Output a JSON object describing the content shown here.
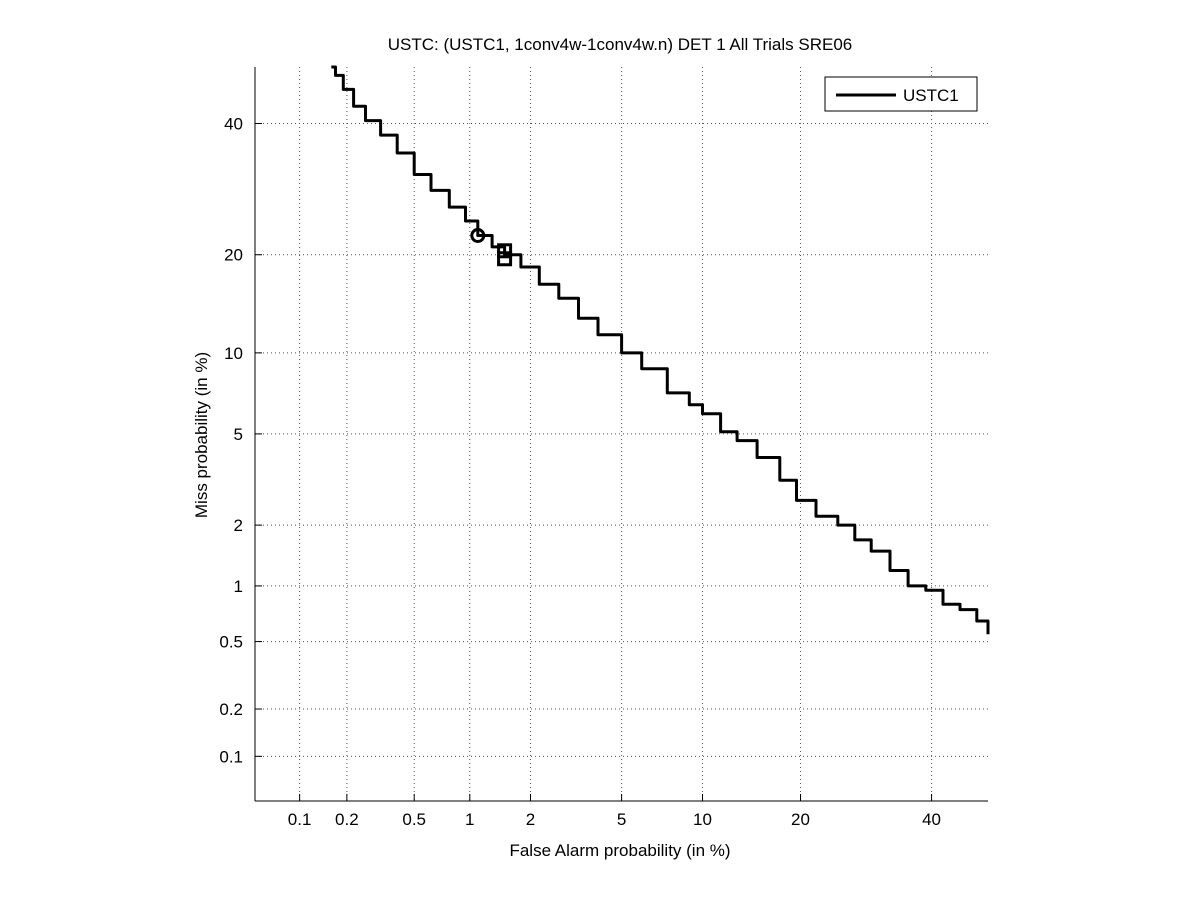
{
  "chart_data": {
    "type": "line",
    "title": "USTC: (USTC1, 1conv4w-1conv4w.n) DET 1 All Trials SRE06",
    "xlabel": "False Alarm probability (in %)",
    "ylabel": "Miss probability (in %)",
    "scale": "normal-deviate (probit) on both axes",
    "xlim": [
      0.05,
      50
    ],
    "ylim": [
      0.05,
      50
    ],
    "xticks": [
      0.1,
      0.2,
      0.5,
      1,
      2,
      5,
      10,
      20,
      40
    ],
    "xticklabels": [
      "0.1",
      "0.2",
      "0.5",
      "1",
      "2",
      "5",
      "10",
      "20",
      "40"
    ],
    "yticks": [
      0.1,
      0.2,
      0.5,
      1,
      2,
      5,
      10,
      20,
      40
    ],
    "yticklabels": [
      "0.1",
      "0.2",
      "0.5",
      "1",
      "2",
      "5",
      "10",
      "20",
      "40"
    ],
    "grid": true,
    "legend": {
      "location": "top-right",
      "entries": [
        "USTC1"
      ]
    },
    "series": [
      {
        "name": "USTC1",
        "color": "#000000",
        "x": [
          0.16,
          0.17,
          0.19,
          0.22,
          0.26,
          0.32,
          0.4,
          0.5,
          0.62,
          0.78,
          0.95,
          1.1,
          1.3,
          1.5,
          1.8,
          2.2,
          2.7,
          3.3,
          4.0,
          5.0,
          6.0,
          7.5,
          9.0,
          10.0,
          11.5,
          13.0,
          15.0,
          17.5,
          19.5,
          22.0,
          25.0,
          27.5,
          30.0,
          33.0,
          36.0,
          39.0,
          42.0,
          45.0,
          48.0,
          50.0
        ],
        "y": [
          50.0,
          48.5,
          46.0,
          43.0,
          40.5,
          38.0,
          35.0,
          31.5,
          29.0,
          26.5,
          24.5,
          22.5,
          21.0,
          20.0,
          18.5,
          16.5,
          15.0,
          13.0,
          11.5,
          10.0,
          8.8,
          7.2,
          6.5,
          6.0,
          5.1,
          4.7,
          4.0,
          3.2,
          2.6,
          2.2,
          2.0,
          1.7,
          1.5,
          1.2,
          1.0,
          0.95,
          0.8,
          0.75,
          0.65,
          0.55
        ]
      }
    ],
    "markers": [
      {
        "shape": "circle",
        "x": 1.1,
        "y": 22.5
      },
      {
        "shape": "square",
        "x": 1.5,
        "y": 20.5
      },
      {
        "shape": "square",
        "x": 1.5,
        "y": 19.5
      }
    ]
  }
}
